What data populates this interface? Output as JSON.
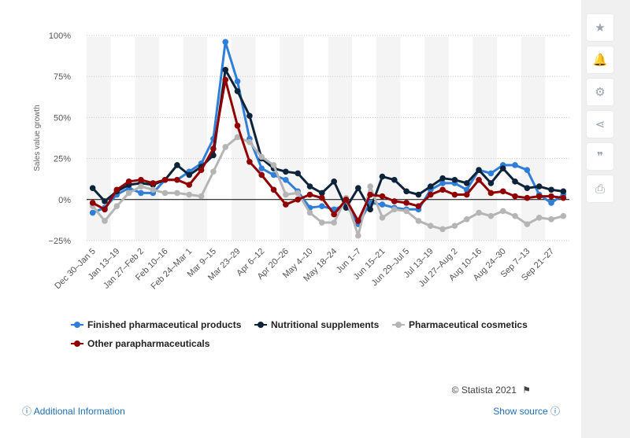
{
  "sidebar": {
    "buttons": [
      {
        "icon": "star-icon",
        "glyph": "★"
      },
      {
        "icon": "bell-icon",
        "glyph": "🔔"
      },
      {
        "icon": "gear-icon",
        "glyph": "⚙"
      },
      {
        "icon": "share-icon",
        "glyph": "⋖"
      },
      {
        "icon": "quote-icon",
        "glyph": "❞"
      },
      {
        "icon": "print-icon",
        "glyph": "⎙"
      }
    ]
  },
  "footer": {
    "credit": "© Statista 2021",
    "additional_info": "Additional Information",
    "show_source": "Show source"
  },
  "chart_data": {
    "type": "line",
    "ylabel": "Sales value growth",
    "ylim": [
      -25,
      100
    ],
    "yticks": [
      -25,
      0,
      25,
      50,
      75,
      100
    ],
    "ytick_labels": [
      "−25%",
      "0%",
      "25%",
      "50%",
      "75%",
      "100%"
    ],
    "grid": true,
    "legend_position": "bottom-left",
    "x": [
      "Dec 30-Jan 5",
      "Jan 6-12",
      "Jan 13-19",
      "Jan 20-26",
      "Jan 27-Feb 2",
      "Feb 3-9",
      "Feb 10-16",
      "Feb 17-23",
      "Feb 24-Mar 1",
      "Mar 2-8",
      "Mar 9-15",
      "Mar 16-22",
      "Mar 23-29",
      "Mar 30-Apr 5",
      "Apr 6-12",
      "Apr 13-19",
      "Apr 20-26",
      "Apr 27-May 3",
      "May 4-10",
      "May 11-17",
      "May 18-24",
      "May 25-31",
      "Jun 1-7",
      "Jun 8-14",
      "Jun 15-21",
      "Jun 22-28",
      "Jun 29-Jul 5",
      "Jul 6-12",
      "Jul 13-19",
      "Jul 20-26",
      "Jul 27-Aug 2",
      "Aug 3-9",
      "Aug 10-16",
      "Aug 17-23",
      "Aug 24-30",
      "Aug 31-Sep 6",
      "Sep 7-13",
      "Sep 14-20",
      "Sep 21-27",
      "Sep 28-Oct 4"
    ],
    "x_tick_labels": [
      "Dec 30–Jan 5",
      "",
      "Jan 13–19",
      "",
      "Jan 27–Feb 2",
      "",
      "Feb 10–16",
      "",
      "Feb 24–Mar 1",
      "",
      "Mar 9–15",
      "",
      "Mar 23–29",
      "",
      "Apr 6–12",
      "",
      "Apr 20–26",
      "",
      "May 4–10",
      "",
      "May 18–24",
      "",
      "Jun 1–7",
      "",
      "Jun 15–21",
      "",
      "Jun 29–Jul 5",
      "",
      "Jul 13–19",
      "",
      "Jul 27–Aug 2",
      "",
      "Aug 10–16",
      "",
      "Aug 24–30",
      "",
      "Sep 7–13",
      "",
      "Sep 21–27",
      ""
    ],
    "series": [
      {
        "name": "Finished pharmaceutical products",
        "color": "#2f7ed8",
        "values": [
          -8,
          -5,
          3,
          7,
          4,
          4,
          12,
          12,
          17,
          22,
          37,
          96,
          72,
          37,
          19,
          15,
          12,
          5,
          -5,
          -4,
          -6,
          -3,
          -15,
          -2,
          -3,
          -5,
          -6,
          -6,
          6,
          10,
          10,
          6,
          18,
          16,
          21,
          21,
          18,
          3,
          -2,
          3
        ]
      },
      {
        "name": "Nutritional supplements",
        "color": "#0d233a",
        "values": [
          7,
          -1,
          5,
          9,
          10,
          9,
          12,
          21,
          15,
          20,
          27,
          79,
          66,
          51,
          25,
          19,
          17,
          16,
          8,
          4,
          11,
          -5,
          7,
          -6,
          14,
          12,
          5,
          3,
          8,
          13,
          12,
          10,
          18,
          10,
          19,
          11,
          7,
          8,
          6,
          5
        ]
      },
      {
        "name": "Pharmaceutical cosmetics",
        "color": "#b5b5b5",
        "values": [
          -4,
          -13,
          -4,
          4,
          8,
          6,
          4,
          4,
          3,
          2,
          17,
          32,
          38,
          35,
          26,
          21,
          3,
          4,
          -8,
          -14,
          -14,
          1,
          -22,
          8,
          -11,
          -6,
          -7,
          -13,
          -16,
          -18,
          -16,
          -12,
          -8,
          -10,
          -7,
          -10,
          -15,
          -11,
          -12,
          -10
        ]
      },
      {
        "name": "Other parapharmaceuticals",
        "color": "#910000",
        "values": [
          -2,
          -6,
          6,
          11,
          12,
          10,
          12,
          12,
          9,
          18,
          31,
          73,
          45,
          23,
          15,
          6,
          -3,
          0,
          3,
          1,
          -9,
          0,
          -13,
          3,
          2,
          -1,
          -2,
          -4,
          3,
          6,
          3,
          3,
          12,
          4,
          5,
          2,
          1,
          2,
          2,
          1
        ]
      }
    ]
  }
}
